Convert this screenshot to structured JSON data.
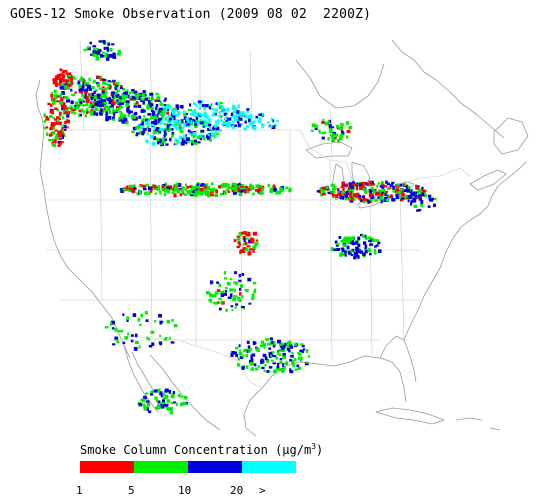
{
  "title": "GOES-12 Smoke Observation (2009 08 02  2200Z)",
  "legend": {
    "label_pre": "Smoke Column Concentration (",
    "label_unit": "µg/m",
    "label_exp": "3",
    "label_post": ")",
    "colors": [
      "#ff0000",
      "#00ee00",
      "#0000dd",
      "#00ffff"
    ],
    "ticks": [
      "1",
      "5",
      "10",
      "20",
      ">"
    ]
  },
  "map": {
    "region": "Continental United States and southern Canada",
    "coastline_color": "#999999",
    "boundary_color": "#c8c8c8"
  }
}
